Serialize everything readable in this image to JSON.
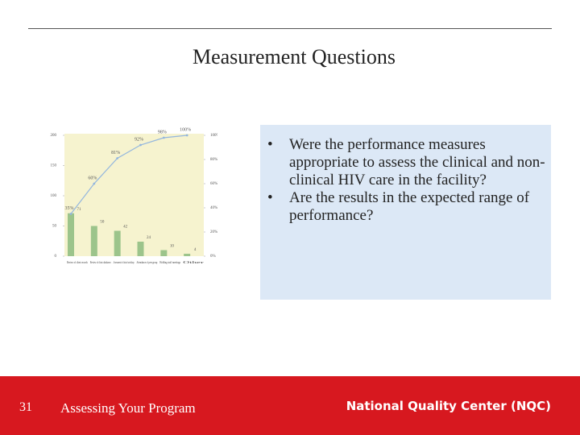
{
  "title": "Measurement Questions",
  "bullets": [
    "Were the performance measures appropriate to assess the clinical and non-clinical HIV care in the facility?",
    "Are the results in the expected range of performance?"
  ],
  "footer": {
    "page": "31",
    "text": "Assessing Your Program",
    "organization": "National Quality Center (NQC)"
  },
  "chart_data": {
    "type": "pareto",
    "categories": [
      "Review of client records",
      "Review of clinic databases",
      "Assessment of clinical workshop",
      "Attendance of peer group",
      "Holding staff meetings",
      "Other"
    ],
    "series": [
      {
        "color": "#9cc48b",
        "values": [
          71,
          50,
          42,
          24,
          10,
          4
        ]
      },
      {
        "color": "#93b6de",
        "axis": "y2",
        "values": [
          35,
          60,
          81,
          92,
          98,
          100
        ],
        "value_labels": [
          "35%",
          "60%",
          "81%",
          "92%",
          "98%",
          "100%"
        ]
      }
    ],
    "ylim": [
      0,
      200
    ],
    "yticks": [
      0,
      50,
      100,
      150,
      200
    ],
    "y2lim": [
      0,
      100
    ],
    "y2ticks": [
      {
        "value": 0,
        "label": "0%"
      },
      {
        "value": 20,
        "label": "20%"
      },
      {
        "value": 40,
        "label": "40%"
      },
      {
        "value": 60,
        "label": "60%"
      },
      {
        "value": 80,
        "label": "80%"
      },
      {
        "value": 100,
        "label": "100%"
      }
    ]
  }
}
